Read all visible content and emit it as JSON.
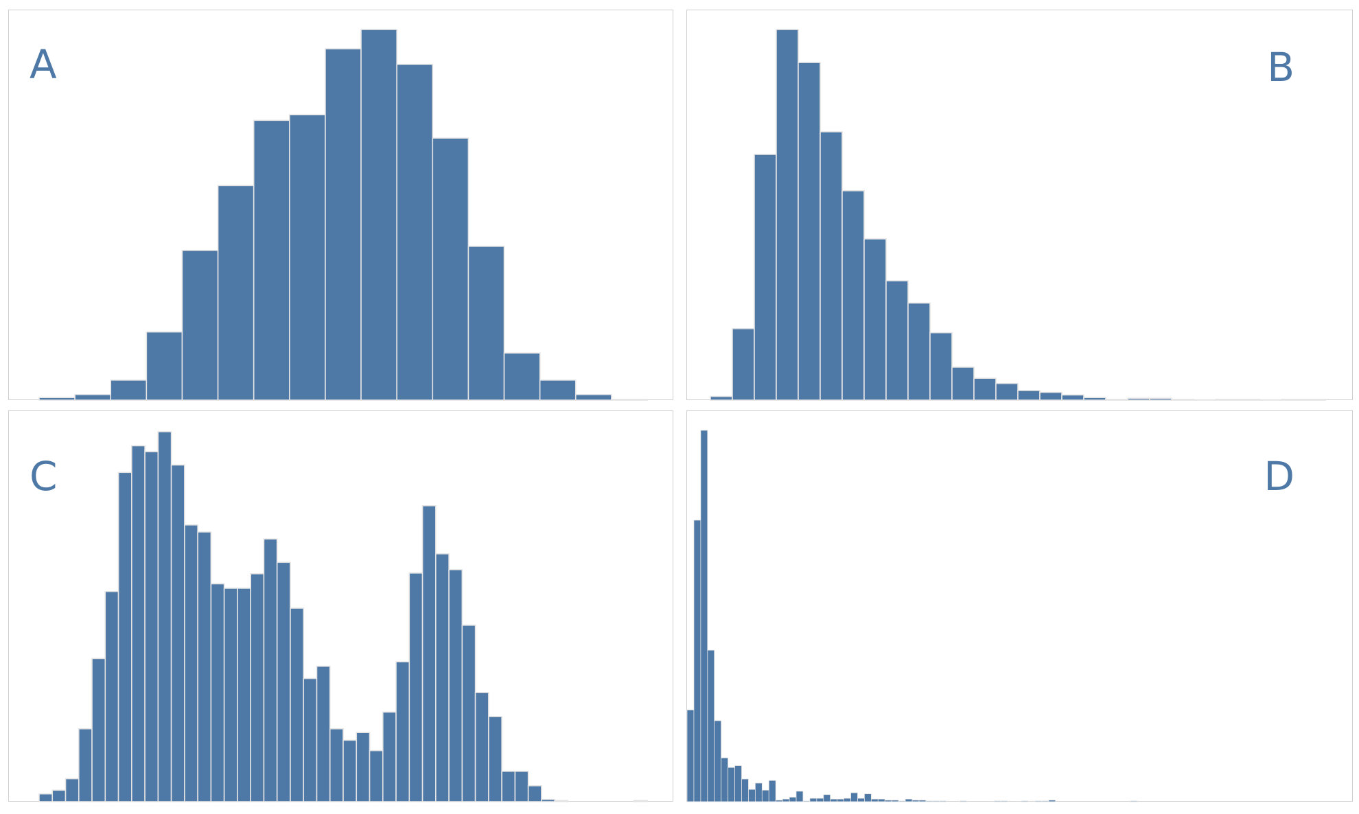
{
  "colors": {
    "bar_fill": "#4e78a6",
    "bar_edge": "#e4e4e4",
    "panel_border": "#cfcfcf",
    "label": "#4e78a6"
  },
  "chart_data": [
    {
      "type": "bar",
      "panel_label": "A",
      "title": "",
      "xlabel": "",
      "ylabel": "",
      "ylim": [
        0,
        100
      ],
      "values": [
        0.7,
        1.5,
        5.4,
        18.4,
        40.4,
        57.9,
        75.5,
        77.0,
        94.8,
        100.0,
        90.6,
        70.7,
        41.5,
        12.7,
        5.4,
        1.5,
        0.2
      ],
      "grid": false
    },
    {
      "type": "bar",
      "panel_label": "B",
      "title": "",
      "xlabel": "",
      "ylabel": "",
      "ylim": [
        0,
        100
      ],
      "values": [
        1.0,
        19.3,
        66.3,
        100.0,
        91.1,
        72.4,
        56.5,
        43.5,
        32.2,
        26.2,
        18.2,
        8.9,
        5.9,
        4.5,
        2.6,
        2.1,
        1.4,
        0.7,
        0.2,
        0.5,
        0.5,
        0.2,
        0.1,
        0.2,
        0.2,
        0.1,
        0.2,
        0.2
      ],
      "grid": false
    },
    {
      "type": "bar",
      "panel_label": "C",
      "title": "",
      "xlabel": "",
      "ylabel": "",
      "ylim": [
        0,
        100
      ],
      "values": [
        2.1,
        3.1,
        6.2,
        19.7,
        38.7,
        56.8,
        89.0,
        96.2,
        94.6,
        100.0,
        91.0,
        74.8,
        72.9,
        58.9,
        57.7,
        57.7,
        61.6,
        71.0,
        64.7,
        52.3,
        33.3,
        36.6,
        19.7,
        16.6,
        18.7,
        13.8,
        24.2,
        37.8,
        61.8,
        80.0,
        67.0,
        62.7,
        47.7,
        29.5,
        23.0,
        8.2,
        8.2,
        4.3,
        0.6,
        0.3,
        0,
        0,
        0,
        0,
        0,
        0.3
      ],
      "grid": false
    },
    {
      "type": "bar",
      "panel_label": "D",
      "title": "",
      "xlabel": "",
      "ylabel": "",
      "ylim": [
        0,
        100
      ],
      "values": [
        24.7,
        75.8,
        100.0,
        40.8,
        21.8,
        11.8,
        9.2,
        9.7,
        6.1,
        3.3,
        5.0,
        3.1,
        5.7,
        0.4,
        0.7,
        1.2,
        2.8,
        0.2,
        0.9,
        0.9,
        1.9,
        0.7,
        0.7,
        0.9,
        2.4,
        0.9,
        2.1,
        0.7,
        0.7,
        0.4,
        0.4,
        0.2,
        0.7,
        0.4,
        0.4,
        0.2,
        0.2,
        0.2,
        0,
        0,
        0.2,
        0,
        0,
        0,
        0,
        0.2,
        0.2,
        0,
        0,
        0.2,
        0,
        0.2,
        0.2,
        0.4,
        0,
        0,
        0,
        0,
        0,
        0,
        0,
        0,
        0,
        0,
        0,
        0.2
      ],
      "grid": false
    }
  ]
}
